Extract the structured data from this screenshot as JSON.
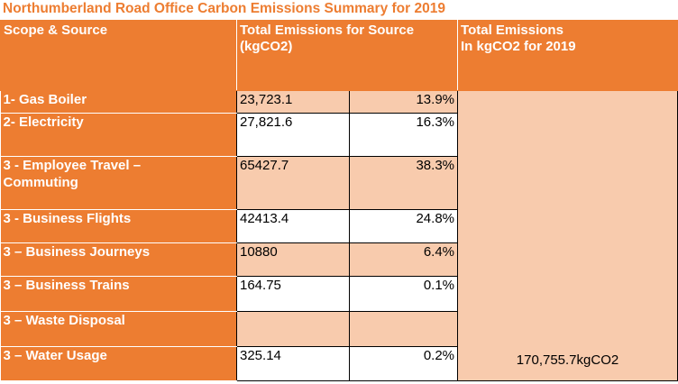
{
  "title": "Northumberland Road Office Carbon Emissions Summary for 2019",
  "headers": {
    "scope_source": "Scope & Source",
    "total_source_line1": "Total Emissions for Source",
    "total_source_line2": "(kgCO2)",
    "total_year_line1": "Total Emissions",
    "total_year_line2": "In kgCO2 for 2019"
  },
  "rows": [
    {
      "source": "1- Gas Boiler",
      "value": "23,723.1",
      "percent": "13.9%"
    },
    {
      "source": "2- Electricity",
      "value": "27,821.6",
      "percent": "16.3%"
    },
    {
      "source_line1": "3 - Employee Travel –",
      "source_line2": "Commuting",
      "value": "65427.7",
      "percent": "38.3%"
    },
    {
      "source": "3 - Business Flights",
      "value": "42413.4",
      "percent": "24.8%"
    },
    {
      "source": "3 – Business Journeys",
      "value": "10880",
      "percent": "6.4%"
    },
    {
      "source": "3 – Business Trains",
      "value": "164.75",
      "percent": "0.1%"
    },
    {
      "source": "3 – Waste Disposal",
      "value": "",
      "percent": ""
    },
    {
      "source": "3 – Water Usage",
      "value": "325.14",
      "percent": "0.2%"
    }
  ],
  "grand_total": "170,755.7kgCO2",
  "colors": {
    "accent": "#ED7D31",
    "shade": "#F8CBAD"
  }
}
